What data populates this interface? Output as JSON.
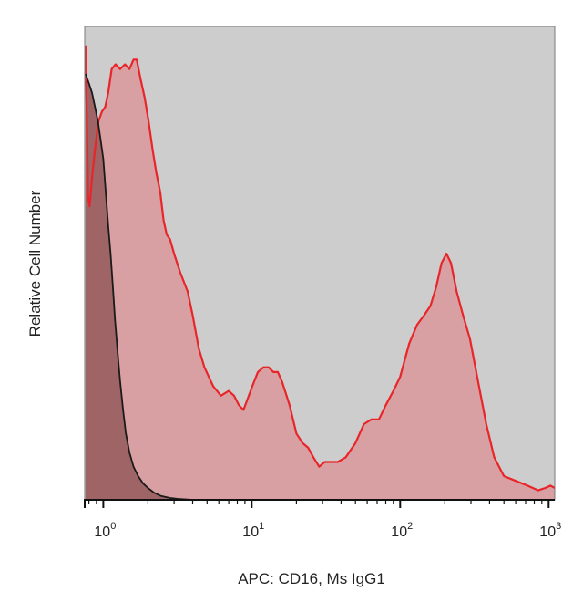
{
  "chart_data": {
    "type": "area",
    "title": "",
    "xlabel": "APC: CD16, Ms IgG1",
    "ylabel": "Relative Cell Number",
    "x_scale": "log",
    "xlim": [
      0.75,
      1100
    ],
    "ylim": [
      0,
      1
    ],
    "grid": false,
    "legend": "none",
    "x_ticks": [
      {
        "base": "10",
        "exp": "0",
        "value": 1
      },
      {
        "base": "10",
        "exp": "1",
        "value": 10
      },
      {
        "base": "10",
        "exp": "2",
        "value": 100
      },
      {
        "base": "10",
        "exp": "3",
        "value": 1000
      }
    ],
    "series": [
      {
        "label": "CD16",
        "line_color": "#e8262a",
        "fill_color": "#d9a0a3",
        "points": [
          [
            0.76,
            0.96
          ],
          [
            0.78,
            0.76
          ],
          [
            0.79,
            0.64
          ],
          [
            0.81,
            0.62
          ],
          [
            0.84,
            0.68
          ],
          [
            0.88,
            0.74
          ],
          [
            0.93,
            0.8
          ],
          [
            0.98,
            0.82
          ],
          [
            1.03,
            0.83
          ],
          [
            1.08,
            0.86
          ],
          [
            1.14,
            0.91
          ],
          [
            1.21,
            0.92
          ],
          [
            1.3,
            0.91
          ],
          [
            1.4,
            0.92
          ],
          [
            1.5,
            0.91
          ],
          [
            1.6,
            0.93
          ],
          [
            1.68,
            0.93
          ],
          [
            1.78,
            0.89
          ],
          [
            1.9,
            0.85
          ],
          [
            2.02,
            0.8
          ],
          [
            2.15,
            0.74
          ],
          [
            2.28,
            0.69
          ],
          [
            2.42,
            0.65
          ],
          [
            2.55,
            0.59
          ],
          [
            2.68,
            0.56
          ],
          [
            2.82,
            0.55
          ],
          [
            3.0,
            0.52
          ],
          [
            3.3,
            0.48
          ],
          [
            3.7,
            0.44
          ],
          [
            4.0,
            0.39
          ],
          [
            4.4,
            0.32
          ],
          [
            4.8,
            0.28
          ],
          [
            5.5,
            0.24
          ],
          [
            6.2,
            0.22
          ],
          [
            7.0,
            0.23
          ],
          [
            7.6,
            0.22
          ],
          [
            8.2,
            0.2
          ],
          [
            8.8,
            0.19
          ],
          [
            9.3,
            0.21
          ],
          [
            10.1,
            0.24
          ],
          [
            11.0,
            0.27
          ],
          [
            12.0,
            0.28
          ],
          [
            13.0,
            0.28
          ],
          [
            14.0,
            0.27
          ],
          [
            15.0,
            0.27
          ],
          [
            16.0,
            0.25
          ],
          [
            18.0,
            0.2
          ],
          [
            20.0,
            0.14
          ],
          [
            22.0,
            0.12
          ],
          [
            24.0,
            0.11
          ],
          [
            26.0,
            0.09
          ],
          [
            28.5,
            0.07
          ],
          [
            31.0,
            0.08
          ],
          [
            34.0,
            0.08
          ],
          [
            38.0,
            0.08
          ],
          [
            43.0,
            0.09
          ],
          [
            50.0,
            0.12
          ],
          [
            57.0,
            0.16
          ],
          [
            64.0,
            0.17
          ],
          [
            72.0,
            0.17
          ],
          [
            80.0,
            0.2
          ],
          [
            90.0,
            0.23
          ],
          [
            100,
            0.26
          ],
          [
            115,
            0.33
          ],
          [
            130,
            0.37
          ],
          [
            145,
            0.39
          ],
          [
            160,
            0.41
          ],
          [
            175,
            0.45
          ],
          [
            190,
            0.5
          ],
          [
            205,
            0.52
          ],
          [
            220,
            0.5
          ],
          [
            240,
            0.44
          ],
          [
            265,
            0.39
          ],
          [
            295,
            0.34
          ],
          [
            330,
            0.26
          ],
          [
            380,
            0.16
          ],
          [
            430,
            0.09
          ],
          [
            500,
            0.05
          ],
          [
            600,
            0.04
          ],
          [
            720,
            0.03
          ],
          [
            850,
            0.02
          ],
          [
            950,
            0.025
          ],
          [
            1030,
            0.03
          ],
          [
            1100,
            0.025
          ]
        ]
      },
      {
        "label": "Ms IgG1",
        "line_color": "#1a1a1a",
        "fill_color": "#9e6466",
        "points": [
          [
            0.76,
            0.9
          ],
          [
            0.8,
            0.88
          ],
          [
            0.84,
            0.86
          ],
          [
            0.88,
            0.83
          ],
          [
            0.92,
            0.8
          ],
          [
            0.96,
            0.76
          ],
          [
            1.0,
            0.72
          ],
          [
            1.04,
            0.65
          ],
          [
            1.08,
            0.58
          ],
          [
            1.12,
            0.52
          ],
          [
            1.16,
            0.45
          ],
          [
            1.2,
            0.38
          ],
          [
            1.25,
            0.31
          ],
          [
            1.3,
            0.25
          ],
          [
            1.36,
            0.19
          ],
          [
            1.42,
            0.14
          ],
          [
            1.5,
            0.1
          ],
          [
            1.6,
            0.07
          ],
          [
            1.72,
            0.05
          ],
          [
            1.85,
            0.035
          ],
          [
            2.0,
            0.025
          ],
          [
            2.2,
            0.015
          ],
          [
            2.45,
            0.008
          ],
          [
            2.8,
            0.004
          ],
          [
            3.2,
            0.002
          ],
          [
            3.6,
            0.001
          ],
          [
            4.0,
            0.0
          ]
        ]
      }
    ]
  },
  "colors": {
    "plot_background": "#cdcdcd",
    "frame": "#7a7a7a",
    "axis": "#111111"
  }
}
